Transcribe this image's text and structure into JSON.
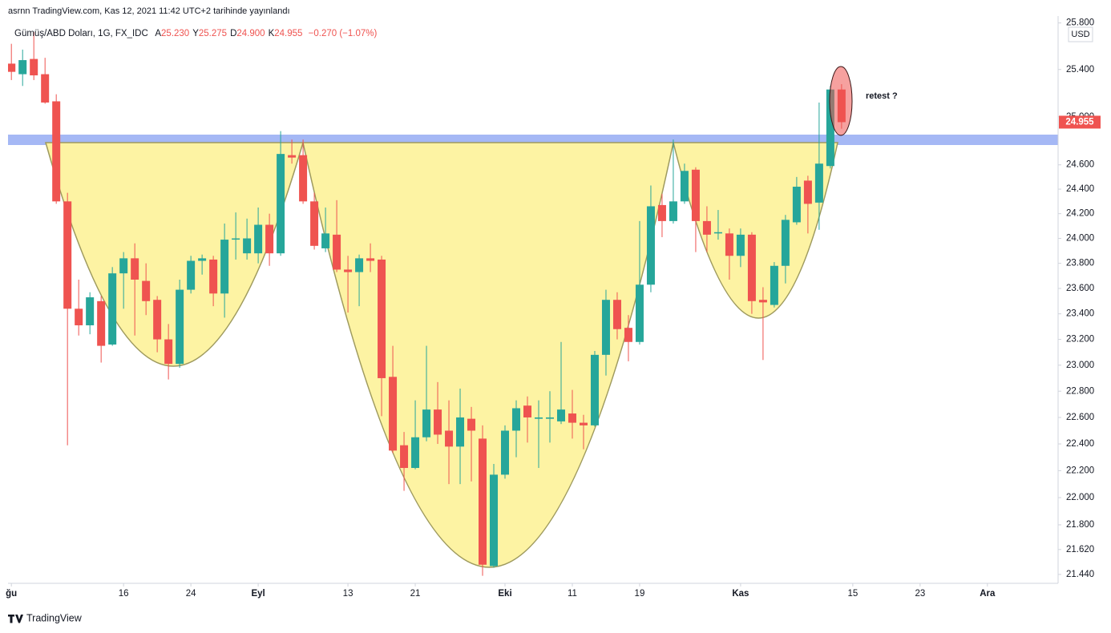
{
  "chart_data": {
    "type": "candlestick",
    "published": "asrnn TradingView.com, Kas 12, 2021 11:42 UTC+2 tarihinde yayınlandı",
    "title": "Gümüş/ABD Doları, 1G, FX_IDC",
    "ohlc_legend": [
      [
        "A",
        "25.230"
      ],
      [
        "Y",
        "25.275"
      ],
      [
        "D",
        "24.900"
      ],
      [
        "K",
        "24.955"
      ]
    ],
    "change": "−0.270 (−1.07%)",
    "currency": "USD",
    "annotation": "retest ?",
    "last_price_label": "24.955",
    "footer": "TradingView",
    "up_color": "#26a69a",
    "down_color": "#ef5350",
    "log_scale": true,
    "grid": false,
    "open": [
      25.45,
      25.36,
      25.49,
      25.36,
      25.13,
      24.3,
      23.44,
      23.31,
      23.5,
      23.16,
      23.72,
      23.84,
      23.66,
      23.51,
      23.2,
      23.01,
      23.59,
      23.82,
      23.83,
      23.56,
      23.99,
      23.88,
      23.88,
      24.11,
      23.88,
      24.68,
      24.68,
      24.3,
      23.92,
      24.03,
      23.75,
      23.73,
      23.84,
      23.83,
      22.91,
      22.39,
      22.22,
      22.45,
      22.66,
      22.5,
      22.38,
      22.59,
      22.44,
      21.5,
      22.17,
      22.5,
      22.69,
      22.59,
      22.59,
      22.57,
      22.63,
      22.56,
      22.54,
      23.08,
      23.51,
      23.29,
      23.18,
      23.63,
      24.27,
      24.14,
      24.3,
      24.56,
      24.14,
      24.04,
      24.04,
      23.86,
      24.03,
      23.51,
      23.47,
      23.78,
      24.13,
      24.47,
      24.29,
      24.59,
      25.23
    ],
    "high": [
      25.62,
      25.57,
      25.72,
      25.5,
      25.19,
      24.37,
      23.67,
      23.57,
      23.54,
      23.77,
      23.89,
      23.96,
      23.8,
      23.54,
      23.32,
      23.67,
      23.86,
      23.87,
      23.86,
      24.12,
      24.21,
      24.16,
      24.25,
      24.2,
      24.88,
      24.81,
      24.81,
      24.37,
      24.25,
      24.31,
      23.86,
      23.87,
      23.96,
      23.86,
      23.15,
      22.49,
      22.73,
      23.15,
      22.87,
      22.73,
      22.82,
      22.68,
      22.54,
      22.25,
      22.54,
      22.73,
      22.76,
      22.73,
      22.8,
      23.18,
      22.81,
      22.62,
      23.11,
      23.59,
      23.57,
      23.39,
      24.14,
      24.43,
      24.36,
      24.81,
      24.61,
      24.58,
      24.26,
      24.23,
      24.08,
      24.08,
      24.05,
      23.61,
      23.81,
      24.19,
      24.5,
      24.51,
      25.12,
      25.26,
      25.275
    ],
    "low": [
      25.31,
      25.26,
      25.31,
      25.11,
      24.28,
      22.39,
      23.23,
      23.24,
      23.02,
      23.15,
      23.44,
      23.23,
      23.39,
      23.1,
      22.89,
      22.98,
      23.56,
      23.71,
      23.46,
      23.37,
      23.83,
      23.83,
      23.8,
      23.78,
      23.86,
      24.61,
      24.28,
      23.91,
      23.89,
      23.73,
      23.41,
      23.46,
      23.73,
      22.61,
      22.33,
      22.05,
      22.21,
      22.42,
      22.4,
      22.1,
      22.1,
      22.12,
      21.43,
      21.49,
      22.14,
      22.3,
      22.41,
      22.22,
      22.41,
      22.55,
      22.44,
      22.36,
      22.53,
      22.92,
      23.2,
      23.03,
      23.16,
      23.57,
      24.01,
      24.12,
      24.28,
      23.89,
      23.89,
      23.99,
      23.67,
      23.77,
      23.4,
      23.04,
      23.45,
      23.64,
      24.11,
      24.04,
      24.07,
      24.57,
      24.9
    ],
    "close": [
      25.38,
      25.48,
      25.35,
      25.12,
      24.3,
      23.44,
      23.31,
      23.53,
      23.15,
      23.72,
      23.84,
      23.67,
      23.5,
      23.2,
      23.01,
      23.59,
      23.82,
      23.84,
      23.56,
      23.99,
      24.0,
      24.0,
      24.11,
      23.88,
      24.69,
      24.66,
      24.3,
      23.94,
      24.04,
      23.75,
      23.73,
      23.84,
      23.82,
      22.9,
      22.35,
      22.22,
      22.45,
      22.66,
      22.47,
      22.38,
      22.6,
      22.5,
      21.51,
      22.17,
      22.5,
      22.67,
      22.6,
      22.6,
      22.6,
      22.66,
      22.56,
      22.54,
      23.08,
      23.51,
      23.28,
      23.18,
      23.63,
      24.26,
      24.14,
      24.3,
      24.55,
      24.14,
      24.03,
      24.05,
      23.86,
      24.03,
      23.5,
      23.49,
      23.78,
      24.15,
      24.42,
      24.28,
      24.61,
      25.23,
      24.955
    ],
    "xlim": [
      -0.3,
      93.3
    ],
    "xticks": [
      {
        "value": 0,
        "label": "ğu"
      },
      {
        "value": 10,
        "label": "16"
      },
      {
        "value": 16,
        "label": "24"
      },
      {
        "value": 22,
        "label": "Eyl"
      },
      {
        "value": 30,
        "label": "13"
      },
      {
        "value": 36,
        "label": "21"
      },
      {
        "value": 44,
        "label": "Eki"
      },
      {
        "value": 50,
        "label": "11"
      },
      {
        "value": 56,
        "label": "19"
      },
      {
        "value": 65,
        "label": "Kas"
      },
      {
        "value": 75,
        "label": "15"
      },
      {
        "value": 81,
        "label": "23"
      },
      {
        "value": 87,
        "label": "Ara"
      }
    ],
    "ylim": [
      21.376,
      25.86
    ],
    "yticks": [
      {
        "value": 25.8,
        "label": "25.800"
      },
      {
        "value": 25.4,
        "label": "25.400"
      },
      {
        "value": 25.0,
        "label": "25.000"
      },
      {
        "value": 24.6,
        "label": "24.600"
      },
      {
        "value": 24.4,
        "label": "24.400"
      },
      {
        "value": 24.2,
        "label": "24.200"
      },
      {
        "value": 24.0,
        "label": "24.000"
      },
      {
        "value": 23.8,
        "label": "23.800"
      },
      {
        "value": 23.6,
        "label": "23.600"
      },
      {
        "value": 23.4,
        "label": "23.400"
      },
      {
        "value": 23.2,
        "label": "23.200"
      },
      {
        "value": 23.0,
        "label": "23.000"
      },
      {
        "value": 22.8,
        "label": "22.800"
      },
      {
        "value": 22.6,
        "label": "22.600"
      },
      {
        "value": 22.4,
        "label": "22.400"
      },
      {
        "value": 22.2,
        "label": "22.200"
      },
      {
        "value": 22.0,
        "label": "22.000"
      },
      {
        "value": 21.8,
        "label": "21.800"
      },
      {
        "value": 21.62,
        "label": "21.620"
      },
      {
        "value": 21.44,
        "label": "21.440"
      }
    ]
  }
}
